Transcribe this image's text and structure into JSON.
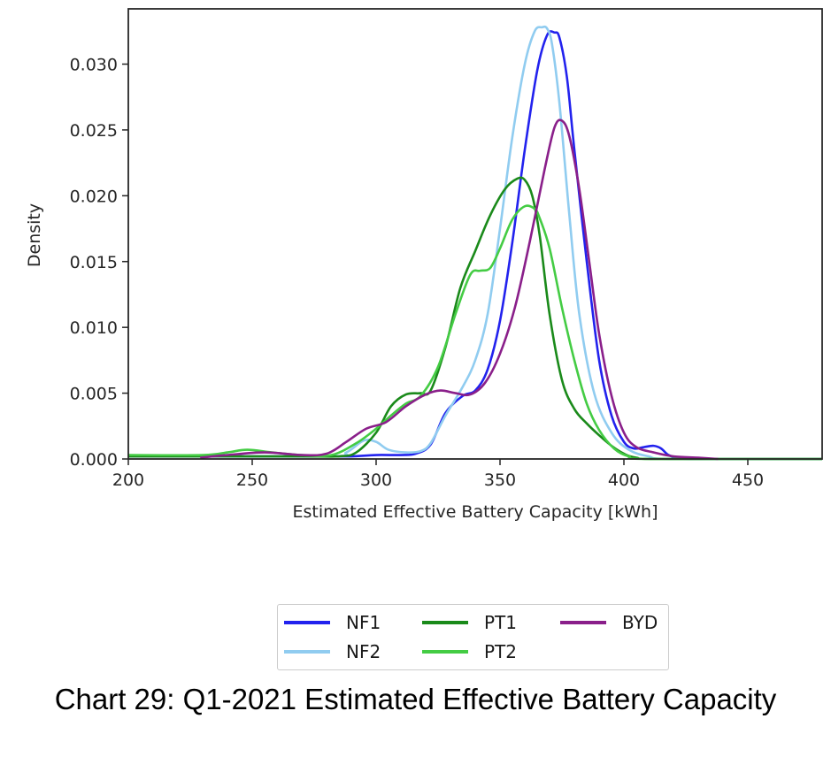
{
  "caption": "Chart 29: Q1-2021 Estimated Effective Battery Capacity",
  "chart_data": {
    "type": "line",
    "title": "",
    "xlabel": "Estimated Effective Battery Capacity [kWh]",
    "ylabel": "Density",
    "xlim": [
      200,
      480
    ],
    "ylim": [
      0,
      0.0342
    ],
    "xticks": [
      200,
      250,
      300,
      350,
      400,
      450
    ],
    "xtick_labels": [
      "200",
      "250",
      "300",
      "350",
      "400",
      "450"
    ],
    "yticks": [
      0.0,
      0.005,
      0.01,
      0.015,
      0.02,
      0.025,
      0.03
    ],
    "ytick_labels": [
      "0.000",
      "0.005",
      "0.010",
      "0.015",
      "0.020",
      "0.025",
      "0.030"
    ],
    "grid": false,
    "legend_position": "below-center",
    "series": [
      {
        "name": "NF1",
        "color": "#2222ee",
        "x": [
          200,
          280,
          290,
          300,
          310,
          316,
          322,
          328,
          335,
          340,
          345,
          350,
          355,
          360,
          365,
          369,
          372,
          374,
          377,
          380,
          385,
          390,
          395,
          400,
          404,
          408,
          412,
          415,
          418,
          422,
          430,
          480
        ],
        "y": [
          0.0002,
          0.0002,
          0.0002,
          0.0003,
          0.0003,
          0.0004,
          0.0011,
          0.0035,
          0.0048,
          0.0052,
          0.0068,
          0.0105,
          0.0165,
          0.0235,
          0.0295,
          0.0322,
          0.0324,
          0.032,
          0.029,
          0.0235,
          0.015,
          0.0075,
          0.0033,
          0.0013,
          0.0008,
          0.0009,
          0.001,
          0.0008,
          0.0003,
          0.0001,
          0.0,
          0.0
        ]
      },
      {
        "name": "NF2",
        "color": "#90ccf0",
        "x": [
          200,
          280,
          288,
          295,
          300,
          305,
          312,
          318,
          322,
          328,
          335,
          340,
          345,
          350,
          355,
          360,
          364,
          367,
          369,
          371,
          374,
          378,
          382,
          388,
          395,
          402,
          410,
          420,
          480
        ],
        "y": [
          0.0002,
          0.0002,
          0.0005,
          0.0014,
          0.0013,
          0.0007,
          0.0005,
          0.0006,
          0.0012,
          0.0033,
          0.0055,
          0.0075,
          0.011,
          0.0175,
          0.0245,
          0.03,
          0.0325,
          0.0328,
          0.0327,
          0.0315,
          0.027,
          0.0185,
          0.011,
          0.005,
          0.002,
          0.0007,
          0.0002,
          0.0,
          0.0
        ]
      },
      {
        "name": "PT1",
        "color": "#1a8a1a",
        "x": [
          200,
          270,
          285,
          292,
          300,
          306,
          312,
          318,
          322,
          328,
          334,
          340,
          346,
          352,
          357,
          360,
          363,
          366,
          370,
          375,
          380,
          385,
          390,
          395,
          400,
          405,
          415,
          480
        ],
        "y": [
          0.0002,
          0.0002,
          0.0002,
          0.0005,
          0.002,
          0.004,
          0.0049,
          0.005,
          0.0052,
          0.0085,
          0.013,
          0.0158,
          0.0185,
          0.0205,
          0.0213,
          0.0212,
          0.02,
          0.017,
          0.011,
          0.006,
          0.0038,
          0.0027,
          0.0018,
          0.001,
          0.0004,
          0.0001,
          0.0,
          0.0
        ]
      },
      {
        "name": "PT2",
        "color": "#44cc44",
        "x": [
          200,
          230,
          240,
          248,
          258,
          270,
          282,
          292,
          300,
          306,
          312,
          318,
          325,
          332,
          338,
          342,
          346,
          350,
          355,
          360,
          364,
          366,
          370,
          375,
          380,
          385,
          390,
          396,
          402,
          410,
          480
        ],
        "y": [
          0.0003,
          0.0003,
          0.0005,
          0.0007,
          0.0005,
          0.0003,
          0.0003,
          0.0012,
          0.0023,
          0.0033,
          0.0042,
          0.0048,
          0.007,
          0.011,
          0.014,
          0.0143,
          0.0145,
          0.016,
          0.0182,
          0.0192,
          0.019,
          0.0183,
          0.016,
          0.0115,
          0.0075,
          0.0042,
          0.0022,
          0.0008,
          0.0002,
          0.0,
          0.0
        ]
      },
      {
        "name": "BYD",
        "color": "#8a1f8a",
        "x": [
          229,
          240,
          255,
          270,
          280,
          288,
          296,
          304,
          312,
          320,
          326,
          332,
          338,
          344,
          350,
          356,
          362,
          368,
          372,
          375,
          378,
          382,
          386,
          390,
          395,
          400,
          405,
          412,
          420,
          430,
          438
        ],
        "y": [
          0.0001,
          0.0003,
          0.0005,
          0.0003,
          0.0004,
          0.0013,
          0.0023,
          0.0028,
          0.004,
          0.0049,
          0.0052,
          0.005,
          0.0049,
          0.0058,
          0.008,
          0.0115,
          0.0165,
          0.022,
          0.0252,
          0.0257,
          0.0245,
          0.0205,
          0.015,
          0.0095,
          0.0048,
          0.002,
          0.0009,
          0.0005,
          0.0002,
          0.0001,
          0.0
        ]
      }
    ]
  },
  "legend": {
    "items": [
      {
        "label": "NF1",
        "color": "#2222ee"
      },
      {
        "label": "NF2",
        "color": "#90ccf0"
      },
      {
        "label": "PT1",
        "color": "#1a8a1a"
      },
      {
        "label": "PT2",
        "color": "#44cc44"
      },
      {
        "label": "BYD",
        "color": "#8a1f8a"
      }
    ]
  }
}
